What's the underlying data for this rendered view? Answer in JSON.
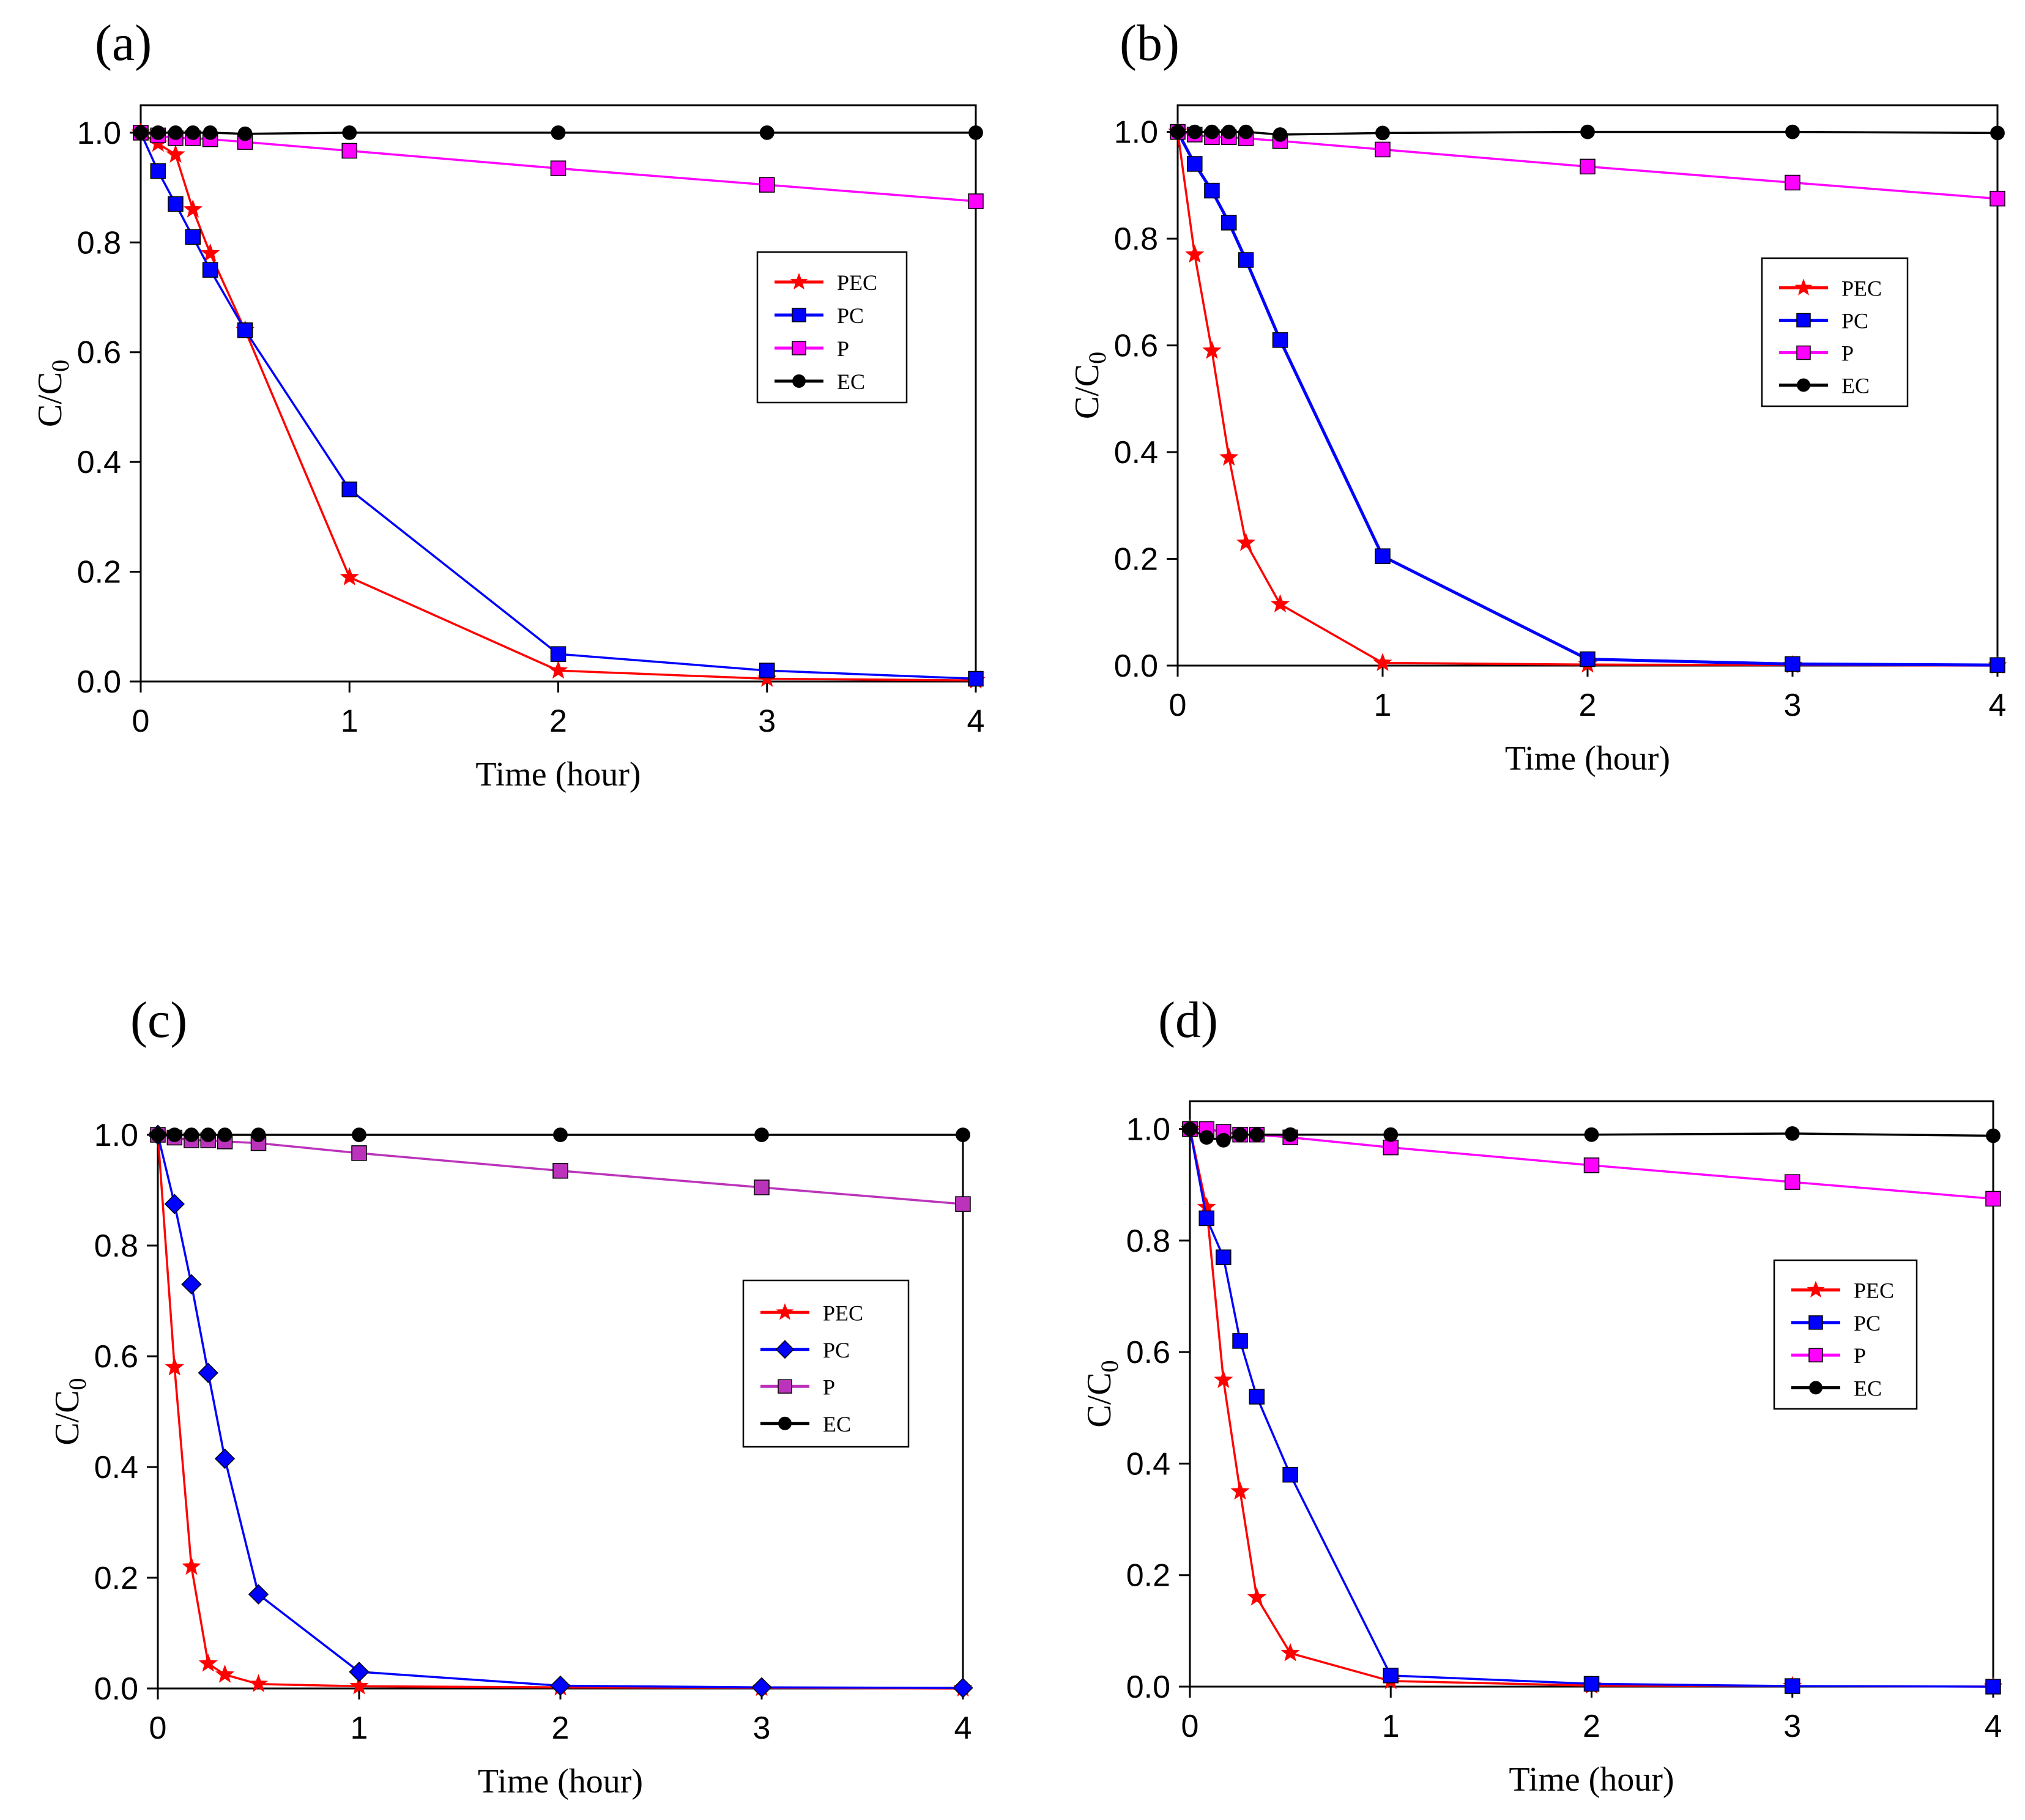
{
  "chart_data": [
    {
      "type": "line",
      "panel_label": "(a)",
      "xlabel": "Time (hour)",
      "ylabel_main": "C/C",
      "ylabel_sub": "0",
      "xlim": [
        0,
        4
      ],
      "ylim": [
        0,
        1.05
      ],
      "xticks": [
        0,
        1,
        2,
        3,
        4
      ],
      "yticks": [
        0.0,
        0.2,
        0.4,
        0.6,
        0.8,
        1.0
      ],
      "legend_position": "right-middle",
      "series": [
        {
          "name": "PEC",
          "color": "#ff0000",
          "marker": "star",
          "x": [
            0,
            0.083,
            0.167,
            0.25,
            0.333,
            0.5,
            1,
            2,
            3,
            4
          ],
          "y": [
            1.0,
            0.98,
            0.96,
            0.86,
            0.78,
            0.64,
            0.19,
            0.02,
            0.005,
            0.002
          ]
        },
        {
          "name": "PC",
          "color": "#0000ff",
          "marker": "square",
          "x": [
            0,
            0.083,
            0.167,
            0.25,
            0.333,
            0.5,
            1,
            2,
            3,
            4
          ],
          "y": [
            1.0,
            0.93,
            0.87,
            0.81,
            0.75,
            0.64,
            0.35,
            0.05,
            0.02,
            0.005
          ]
        },
        {
          "name": "P",
          "color": "#ff00ff",
          "marker": "square",
          "x": [
            0,
            0.083,
            0.167,
            0.25,
            0.333,
            0.5,
            1,
            2,
            3,
            4
          ],
          "y": [
            1.0,
            0.995,
            0.99,
            0.99,
            0.988,
            0.983,
            0.967,
            0.935,
            0.905,
            0.875
          ]
        },
        {
          "name": "EC",
          "color": "#000000",
          "marker": "circle",
          "x": [
            0,
            0.083,
            0.167,
            0.25,
            0.333,
            0.5,
            1,
            2,
            3,
            4
          ],
          "y": [
            1.0,
            1.0,
            1.0,
            1.0,
            1.0,
            0.998,
            1.0,
            1.0,
            1.0,
            1.0
          ]
        }
      ]
    },
    {
      "type": "line",
      "panel_label": "(b)",
      "xlabel": "Time (hour)",
      "ylabel_main": "C/C",
      "ylabel_sub": "0",
      "xlim": [
        0,
        4
      ],
      "ylim": [
        0,
        1.05
      ],
      "xticks": [
        0,
        1,
        2,
        3,
        4
      ],
      "yticks": [
        0.0,
        0.2,
        0.4,
        0.6,
        0.8,
        1.0
      ],
      "legend_position": "right-middle",
      "series": [
        {
          "name": "PEC",
          "color": "#ff0000",
          "marker": "star",
          "x": [
            0,
            0.083,
            0.167,
            0.25,
            0.333,
            0.5,
            1,
            2,
            3,
            4
          ],
          "y": [
            1.0,
            0.77,
            0.59,
            0.39,
            0.23,
            0.115,
            0.005,
            0.002,
            0.001,
            0.0
          ]
        },
        {
          "name": "PC",
          "color": "#0000ff",
          "marker": "square",
          "x": [
            0,
            0.083,
            0.167,
            0.25,
            0.333,
            0.5,
            1,
            2,
            3,
            4
          ],
          "y": [
            1.0,
            0.94,
            0.89,
            0.83,
            0.76,
            0.61,
            0.205,
            0.012,
            0.003,
            0.001
          ]
        },
        {
          "name": "P",
          "color": "#ff00ff",
          "marker": "square",
          "x": [
            0,
            0.083,
            0.167,
            0.25,
            0.333,
            0.5,
            1,
            2,
            3,
            4
          ],
          "y": [
            1.0,
            0.995,
            0.99,
            0.99,
            0.988,
            0.983,
            0.967,
            0.935,
            0.905,
            0.875
          ]
        },
        {
          "name": "EC",
          "color": "#000000",
          "marker": "circle",
          "x": [
            0,
            0.083,
            0.167,
            0.25,
            0.333,
            0.5,
            1,
            2,
            3,
            4
          ],
          "y": [
            1.0,
            1.0,
            1.0,
            1.0,
            1.0,
            0.995,
            0.998,
            1.0,
            1.0,
            0.998
          ]
        }
      ]
    },
    {
      "type": "line",
      "panel_label": "(c)",
      "xlabel": "Time (hour)",
      "ylabel_main": "C/C",
      "ylabel_sub": "0",
      "xlim": [
        0,
        4
      ],
      "ylim": [
        0,
        1.0
      ],
      "xticks": [
        0,
        1,
        2,
        3,
        4
      ],
      "yticks": [
        0.0,
        0.2,
        0.4,
        0.6,
        0.8,
        1.0
      ],
      "legend_position": "right-middle",
      "series": [
        {
          "name": "PEC",
          "color": "#ff0000",
          "marker": "star",
          "x": [
            0,
            0.083,
            0.167,
            0.25,
            0.333,
            0.5,
            1,
            2,
            3,
            4
          ],
          "y": [
            1.0,
            0.58,
            0.22,
            0.045,
            0.025,
            0.008,
            0.004,
            0.002,
            0.001,
            0.0
          ]
        },
        {
          "name": "PC",
          "color": "#0000ff",
          "marker": "diamond",
          "x": [
            0,
            0.083,
            0.167,
            0.25,
            0.333,
            0.5,
            1,
            2,
            3,
            4
          ],
          "y": [
            1.0,
            0.875,
            0.73,
            0.57,
            0.415,
            0.17,
            0.03,
            0.005,
            0.002,
            0.001
          ]
        },
        {
          "name": "P",
          "color": "#bb33bb",
          "marker": "square",
          "x": [
            0,
            0.083,
            0.167,
            0.25,
            0.333,
            0.5,
            1,
            2,
            3,
            4
          ],
          "y": [
            1.0,
            0.995,
            0.99,
            0.99,
            0.988,
            0.985,
            0.967,
            0.935,
            0.905,
            0.875
          ]
        },
        {
          "name": "EC",
          "color": "#000000",
          "marker": "circle",
          "x": [
            0,
            0.083,
            0.167,
            0.25,
            0.333,
            0.5,
            1,
            2,
            3,
            4
          ],
          "y": [
            1.0,
            1.0,
            1.0,
            1.0,
            1.0,
            1.0,
            1.0,
            1.0,
            1.0,
            1.0
          ]
        }
      ]
    },
    {
      "type": "line",
      "panel_label": "(d)",
      "xlabel": "Time (hour)",
      "ylabel_main": "C/C",
      "ylabel_sub": "0",
      "xlim": [
        0,
        4
      ],
      "ylim": [
        0,
        1.05
      ],
      "xticks": [
        0,
        1,
        2,
        3,
        4
      ],
      "yticks": [
        0.0,
        0.2,
        0.4,
        0.6,
        0.8,
        1.0
      ],
      "legend_position": "right-middle",
      "series": [
        {
          "name": "PEC",
          "color": "#ff0000",
          "marker": "star",
          "x": [
            0,
            0.083,
            0.167,
            0.25,
            0.333,
            0.5,
            1,
            2,
            3,
            4
          ],
          "y": [
            1.0,
            0.86,
            0.55,
            0.35,
            0.16,
            0.06,
            0.01,
            0.002,
            0.001,
            0.0
          ]
        },
        {
          "name": "PC",
          "color": "#0000ff",
          "marker": "square",
          "x": [
            0,
            0.083,
            0.167,
            0.25,
            0.333,
            0.5,
            1,
            2,
            3,
            4
          ],
          "y": [
            1.0,
            0.84,
            0.77,
            0.62,
            0.52,
            0.38,
            0.02,
            0.005,
            0.001,
            0.0
          ]
        },
        {
          "name": "P",
          "color": "#ff00ff",
          "marker": "square",
          "x": [
            0,
            0.083,
            0.167,
            0.25,
            0.333,
            0.5,
            1,
            2,
            3,
            4
          ],
          "y": [
            1.0,
            1.0,
            0.995,
            0.99,
            0.99,
            0.985,
            0.967,
            0.935,
            0.905,
            0.875
          ]
        },
        {
          "name": "EC",
          "color": "#000000",
          "marker": "circle",
          "x": [
            0,
            0.083,
            0.167,
            0.25,
            0.333,
            0.5,
            1,
            2,
            3,
            4
          ],
          "y": [
            1.0,
            0.985,
            0.98,
            0.99,
            0.99,
            0.99,
            0.99,
            0.99,
            0.992,
            0.988
          ]
        }
      ]
    }
  ]
}
